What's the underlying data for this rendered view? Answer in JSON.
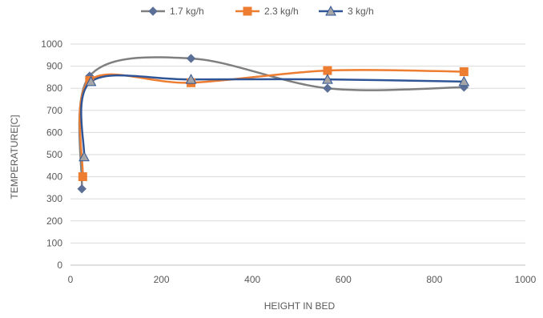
{
  "chart_data": {
    "type": "scatter",
    "title": "",
    "xlabel": "HEIGHT IN BED",
    "ylabel": "TEMPERATURE[C]",
    "xlim": [
      0,
      1000
    ],
    "ylim": [
      0,
      1000
    ],
    "xticks": [
      "0",
      "200",
      "400",
      "600",
      "800",
      "1000"
    ],
    "yticks": [
      "0",
      "100",
      "200",
      "300",
      "400",
      "500",
      "600",
      "700",
      "800",
      "900",
      "1000"
    ],
    "grid": "horizontal",
    "legend_position": "top",
    "smooth_lines": true,
    "series": [
      {
        "name": "1.7 kg/h",
        "color": "#7f7f7f",
        "marker": "diamond",
        "marker_color": "#5b6f96",
        "points": [
          [
            25,
            345
          ],
          [
            42,
            855
          ],
          [
            265,
            935
          ],
          [
            565,
            800
          ],
          [
            865,
            805
          ]
        ]
      },
      {
        "name": "2.3 kg/h",
        "color": "#ed7d31",
        "marker": "square",
        "marker_color": "#ed7d31",
        "points": [
          [
            27,
            400
          ],
          [
            42,
            835
          ],
          [
            265,
            825
          ],
          [
            565,
            880
          ],
          [
            865,
            875
          ]
        ]
      },
      {
        "name": "3 kg/h",
        "color": "#2f5597",
        "marker": "triangle",
        "marker_color": "#a5a5a5",
        "points": [
          [
            30,
            490
          ],
          [
            45,
            830
          ],
          [
            265,
            840
          ],
          [
            565,
            840
          ],
          [
            865,
            830
          ]
        ]
      }
    ]
  }
}
